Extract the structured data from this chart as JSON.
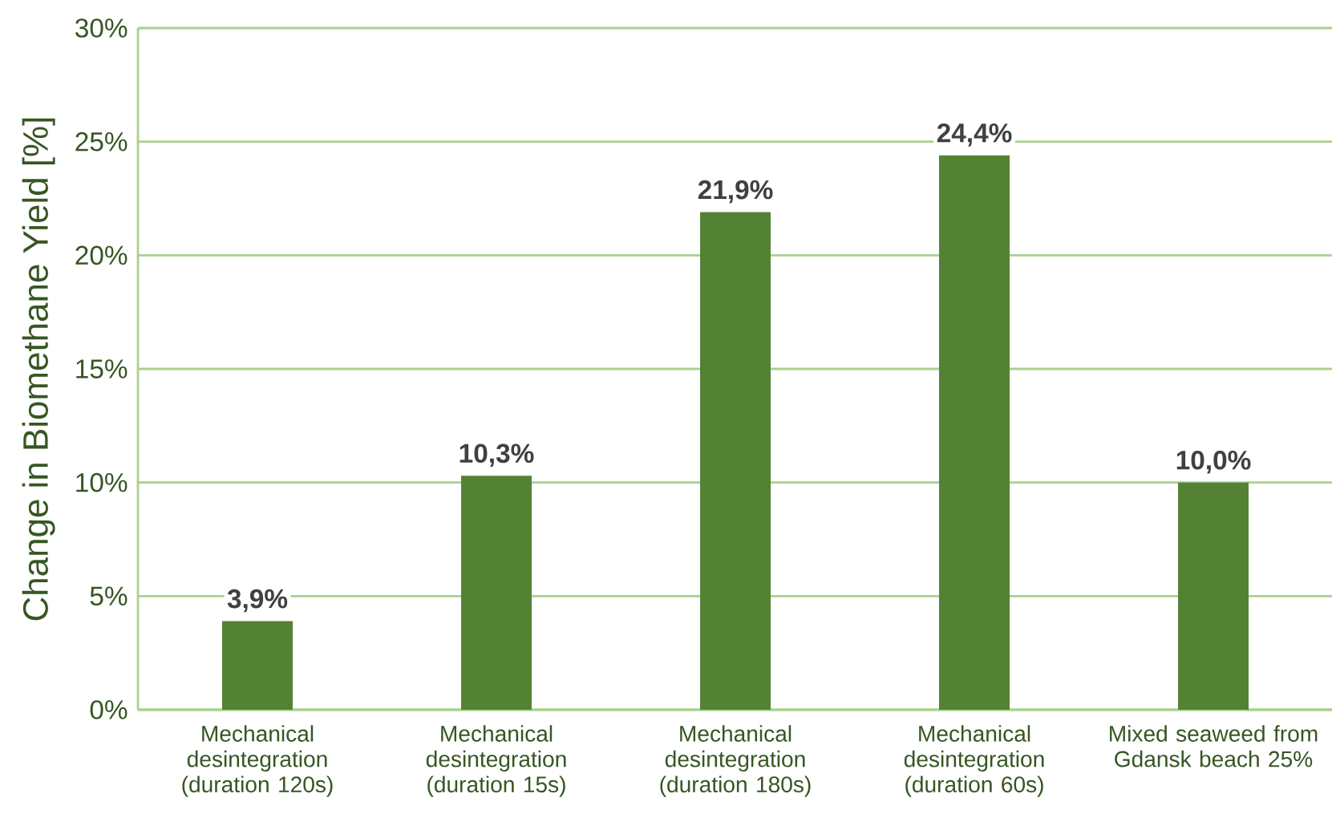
{
  "chart_data": {
    "type": "bar",
    "ylabel": "Change in Biomethane Yield [%]",
    "categories": [
      "Mechanical desintegration (duration 120s)",
      "Mechanical desintegration (duration 15s)",
      "Mechanical desintegration (duration 180s)",
      "Mechanical desintegration (duration 60s)",
      "Mixed seaweed from Gdansk beach 25%"
    ],
    "values": [
      3.9,
      10.3,
      21.9,
      24.4,
      10.0
    ],
    "value_labels": [
      "3,9%",
      "10,3%",
      "21,9%",
      "24,4%",
      "10,0%"
    ],
    "color": "#548235",
    "ylim": [
      0,
      30
    ],
    "yticks": [
      {
        "value": 0,
        "label": "0%"
      },
      {
        "value": 5,
        "label": "5%"
      },
      {
        "value": 10,
        "label": "10%"
      },
      {
        "value": 15,
        "label": "15%"
      },
      {
        "value": 20,
        "label": "20%"
      },
      {
        "value": 25,
        "label": "25%"
      },
      {
        "value": 30,
        "label": "30%"
      }
    ],
    "grid": "y"
  }
}
